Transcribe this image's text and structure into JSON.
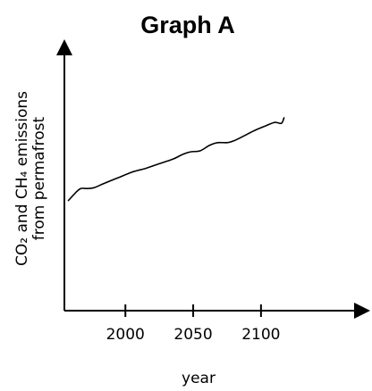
{
  "chart_data": {
    "type": "line",
    "title": "Graph A",
    "xlabel": "year",
    "ylabel_line1": "CO₂ and CH₄ emissions",
    "ylabel_line2": "from permafrost",
    "xticks": [
      "2000",
      "2050",
      "2100"
    ],
    "xtick_values": [
      2000,
      2050,
      2100
    ],
    "xlim": [
      1955,
      2170
    ],
    "y_axis_ticks": false,
    "grid": false,
    "series": [
      {
        "x": [
          1958,
          1963,
          1967,
          1972,
          1977,
          1985,
          1995,
          2005,
          2015,
          2025,
          2035,
          2042,
          2048,
          2055,
          2062,
          2068,
          2075,
          2080,
          2087,
          2095,
          2103,
          2110,
          2115,
          2117
        ],
        "y": [
          0.6,
          0.64,
          0.665,
          0.665,
          0.67,
          0.695,
          0.725,
          0.755,
          0.775,
          0.8,
          0.825,
          0.85,
          0.865,
          0.87,
          0.9,
          0.915,
          0.915,
          0.925,
          0.95,
          0.98,
          1.005,
          1.025,
          1.02,
          1.05
        ]
      }
    ],
    "ylim": [
      0,
      1.4
    ],
    "colors": {
      "line": "#000000",
      "axis": "#000000",
      "background": "#ffffff"
    }
  }
}
